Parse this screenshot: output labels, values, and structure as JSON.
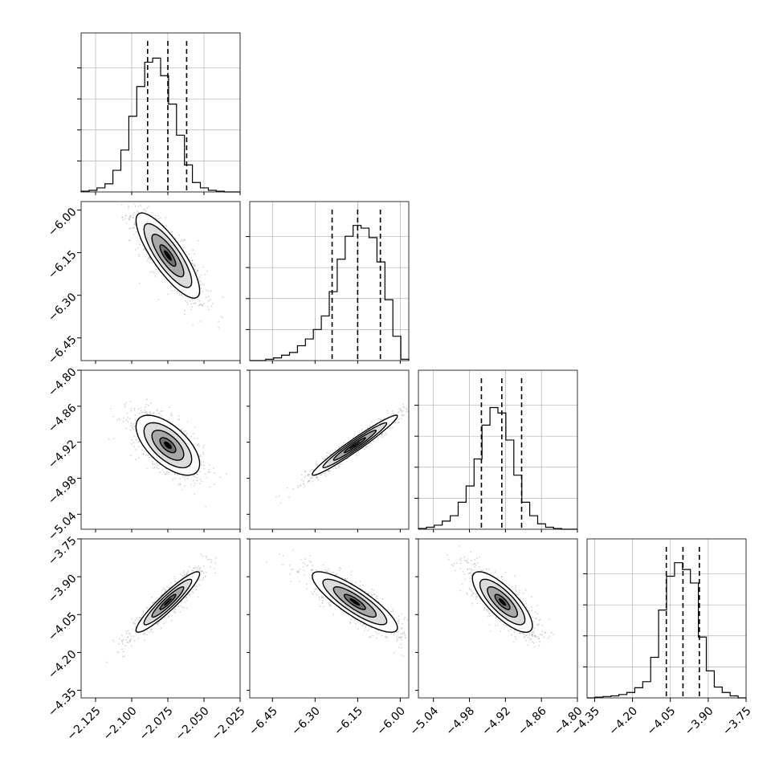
{
  "chart_data": {
    "type": "corner",
    "parameters": [
      {
        "range": [
          -2.135,
          -2.025
        ],
        "ticks": [
          "−2.125",
          "−2.100",
          "−2.075",
          "−2.050",
          "−2.025"
        ],
        "tick_values": [
          -2.125,
          -2.1,
          -2.075,
          -2.05,
          -2.025
        ],
        "quantiles": [
          -2.089,
          -2.075,
          -2.062
        ]
      },
      {
        "range": [
          -6.53,
          -5.97
        ],
        "ticks": [
          "−6.45",
          "−6.30",
          "−6.15",
          "−6.00"
        ],
        "tick_values": [
          -6.45,
          -6.3,
          -6.15,
          -6.0
        ],
        "quantiles": [
          -6.24,
          -6.15,
          -6.07
        ]
      },
      {
        "range": [
          -5.065,
          -4.8
        ],
        "ticks": [
          "−5.04",
          "−4.98",
          "−4.92",
          "−4.86",
          "−4.80"
        ],
        "tick_values": [
          -5.04,
          -4.98,
          -4.92,
          -4.86,
          -4.8
        ],
        "quantiles": [
          -4.96,
          -4.926,
          -4.893
        ]
      },
      {
        "range": [
          -4.38,
          -3.75
        ],
        "ticks": [
          "−4.35",
          "−4.20",
          "−4.05",
          "−3.90",
          "−3.75"
        ],
        "tick_values": [
          -4.35,
          -4.2,
          -4.05,
          -3.9,
          -3.75
        ],
        "quantiles": [
          -4.066,
          -4.0,
          -3.935
        ]
      }
    ],
    "histograms": [
      [
        0.005,
        0.012,
        0.03,
        0.06,
        0.16,
        0.31,
        0.56,
        0.78,
        0.96,
        0.99,
        0.86,
        0.65,
        0.42,
        0.2,
        0.07,
        0.03,
        0.012,
        0.005,
        0.0,
        0.0
      ],
      [
        0.0,
        0.0,
        0.01,
        0.02,
        0.04,
        0.06,
        0.11,
        0.16,
        0.23,
        0.33,
        0.51,
        0.75,
        0.92,
        1.0,
        0.98,
        0.91,
        0.73,
        0.45,
        0.18,
        0.01
      ],
      [
        0.005,
        0.015,
        0.03,
        0.06,
        0.1,
        0.2,
        0.32,
        0.52,
        0.77,
        0.9,
        0.86,
        0.66,
        0.4,
        0.2,
        0.1,
        0.04,
        0.015,
        0.005,
        0.0,
        0.0
      ],
      [
        0.0,
        0.005,
        0.01,
        0.015,
        0.025,
        0.04,
        0.075,
        0.12,
        0.3,
        0.65,
        0.9,
        1.0,
        0.95,
        0.85,
        0.45,
        0.2,
        0.08,
        0.04,
        0.015,
        0.0
      ]
    ],
    "pairs": [
      {
        "x": 0,
        "y": 1,
        "corr": -0.82,
        "mean": [
          -2.075,
          -6.16
        ],
        "sd": [
          0.011,
          0.075
        ]
      },
      {
        "x": 0,
        "y": 2,
        "corr": -0.62,
        "mean": [
          -2.075,
          -4.925
        ],
        "sd": [
          0.011,
          0.025
        ]
      },
      {
        "x": 1,
        "y": 2,
        "corr": 0.97,
        "mean": [
          -6.16,
          -4.925
        ],
        "sd": [
          0.075,
          0.025
        ]
      },
      {
        "x": 0,
        "y": 3,
        "corr": 0.93,
        "mean": [
          -2.075,
          -4.0
        ],
        "sd": [
          0.011,
          0.06
        ]
      },
      {
        "x": 1,
        "y": 3,
        "corr": -0.85,
        "mean": [
          -6.16,
          -4.0
        ],
        "sd": [
          0.075,
          0.06
        ]
      },
      {
        "x": 2,
        "y": 3,
        "corr": -0.78,
        "mean": [
          -4.925,
          -4.0
        ],
        "sd": [
          0.025,
          0.06
        ]
      }
    ],
    "contour_levels_sigma": [
      0.5,
      1.0,
      1.5,
      2.0
    ],
    "grid": true,
    "colors": {
      "line": "#000000",
      "grid": "#b0b0b0",
      "points": "#808080",
      "fill_levels": [
        "#3a3a3a",
        "#707070",
        "#a8a8a8",
        "#dcdcdc"
      ]
    }
  }
}
